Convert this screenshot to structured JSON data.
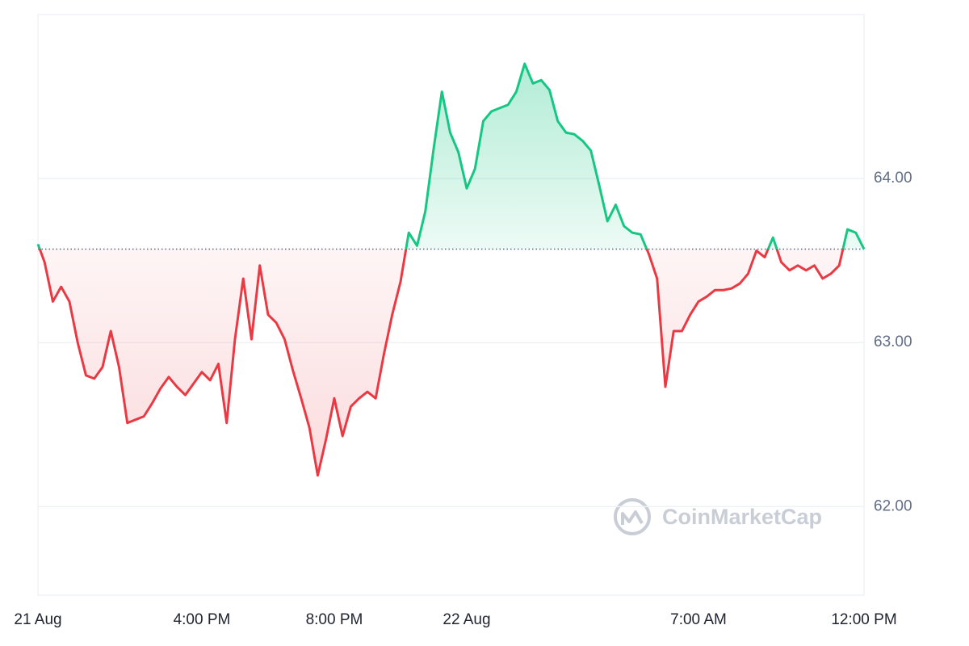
{
  "chart_data": {
    "type": "line",
    "x": [
      -12.95,
      -12.75,
      -12.5,
      -12.25,
      -12.0,
      -11.75,
      -11.5,
      -11.25,
      -11.0,
      -10.75,
      -10.5,
      -10.25,
      -10.0,
      -9.75,
      -9.5,
      -9.25,
      -9.0,
      -8.75,
      -8.5,
      -8.25,
      -8.0,
      -7.75,
      -7.5,
      -7.25,
      -7.0,
      -6.75,
      -6.5,
      -6.25,
      -6.0,
      -5.75,
      -5.5,
      -5.25,
      -5.0,
      -4.75,
      -4.5,
      -4.25,
      -4.0,
      -3.75,
      -3.5,
      -3.25,
      -3.0,
      -2.75,
      -2.5,
      -2.25,
      -2.0,
      -1.75,
      -1.5,
      -1.25,
      -1.0,
      -0.75,
      -0.5,
      -0.25,
      0,
      0.25,
      0.5,
      0.75,
      1.0,
      1.25,
      1.5,
      1.75,
      2.0,
      2.25,
      2.5,
      2.75,
      3.0,
      3.25,
      3.5,
      3.75,
      4.0,
      4.25,
      4.5,
      4.75,
      5.0,
      5.25,
      5.5,
      5.75,
      6.0,
      6.25,
      6.5,
      6.75,
      7.0,
      7.25,
      7.5,
      7.75,
      8.0,
      8.25,
      8.5,
      8.75,
      9.0,
      9.25,
      9.5,
      9.75,
      10.0,
      10.25,
      10.5,
      10.75,
      11.0,
      11.25,
      11.5,
      11.75,
      12.0
    ],
    "series": [
      {
        "values": [
          63.6,
          63.49,
          63.25,
          63.34,
          63.25,
          63.0,
          62.8,
          62.78,
          62.85,
          63.07,
          62.85,
          62.51,
          62.53,
          62.55,
          62.63,
          62.72,
          62.79,
          62.73,
          62.68,
          62.75,
          62.82,
          62.77,
          62.87,
          62.51,
          63.02,
          63.39,
          63.02,
          63.47,
          63.17,
          63.12,
          63.02,
          62.83,
          62.66,
          62.48,
          62.19,
          62.41,
          62.66,
          62.43,
          62.61,
          62.66,
          62.7,
          62.66,
          62.93,
          63.17,
          63.37,
          63.67,
          63.59,
          63.8,
          64.18,
          64.53,
          64.28,
          64.16,
          63.94,
          64.06,
          64.35,
          64.41,
          64.43,
          64.45,
          64.53,
          64.7,
          64.58,
          64.6,
          64.54,
          64.35,
          64.28,
          64.27,
          64.23,
          64.17,
          63.96,
          63.74,
          63.84,
          63.71,
          63.67,
          63.66,
          63.54,
          63.39,
          62.73,
          63.07,
          63.07,
          63.17,
          63.25,
          63.28,
          63.32,
          63.32,
          63.33,
          63.36,
          63.42,
          63.56,
          63.52,
          63.64,
          63.49,
          63.44,
          63.47,
          63.44,
          63.47,
          63.39,
          63.42,
          63.47,
          63.69,
          63.67,
          63.57
        ]
      }
    ],
    "baseline": 63.57,
    "up_color": "#16c784",
    "down_color": "#ea3943",
    "xlim": [
      -12.95,
      12.0
    ],
    "xticks": [
      {
        "value": -12.95,
        "label": "21 Aug"
      },
      {
        "value": -8,
        "label": "4:00 PM"
      },
      {
        "value": -4,
        "label": "8:00 PM"
      },
      {
        "value": 0,
        "label": "22 Aug"
      },
      {
        "value": 7,
        "label": "7:00 AM"
      },
      {
        "value": 12,
        "label": "12:00 PM"
      }
    ],
    "ylim": [
      61.46,
      65.0
    ],
    "yticks": [
      {
        "value": 62,
        "label": "62.00"
      },
      {
        "value": 63,
        "label": "63.00"
      },
      {
        "value": 64,
        "label": "64.00"
      }
    ],
    "grid": true,
    "watermark": "CoinMarketCap"
  }
}
